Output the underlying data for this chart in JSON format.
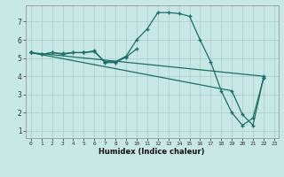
{
  "xlabel": "Humidex (Indice chaleur)",
  "background_color": "#c8e8e5",
  "grid_color": "#a8ccca",
  "line_color": "#1a7068",
  "xlim_min": -0.5,
  "xlim_max": 23.4,
  "ylim_min": 0.6,
  "ylim_max": 7.9,
  "yticks": [
    1,
    2,
    3,
    4,
    5,
    6,
    7
  ],
  "xticks": [
    0,
    1,
    2,
    3,
    4,
    5,
    6,
    7,
    8,
    9,
    10,
    11,
    12,
    13,
    14,
    15,
    16,
    17,
    18,
    19,
    20,
    21,
    22,
    23
  ],
  "series": [
    {
      "x": [
        0,
        1,
        2,
        3,
        4,
        5,
        6,
        7,
        8,
        9,
        10,
        11,
        12,
        13,
        14,
        15,
        16,
        17,
        18,
        19,
        20,
        21,
        22
      ],
      "y": [
        5.3,
        5.2,
        5.3,
        5.25,
        5.3,
        5.3,
        5.35,
        4.8,
        4.8,
        5.1,
        6.0,
        6.6,
        7.5,
        7.5,
        7.45,
        7.3,
        6.0,
        4.8,
        3.2,
        2.0,
        1.3,
        1.7,
        3.9
      ]
    },
    {
      "x": [
        0,
        1,
        2,
        3,
        4,
        5,
        6,
        7,
        8,
        9,
        10
      ],
      "y": [
        5.3,
        5.2,
        5.3,
        5.2,
        5.3,
        5.3,
        5.4,
        4.75,
        4.75,
        5.05,
        5.5
      ]
    },
    {
      "x": [
        0,
        22
      ],
      "y": [
        5.3,
        4.0
      ]
    },
    {
      "x": [
        0,
        19,
        20,
        21,
        22
      ],
      "y": [
        5.3,
        3.2,
        1.9,
        1.3,
        3.9
      ]
    }
  ]
}
